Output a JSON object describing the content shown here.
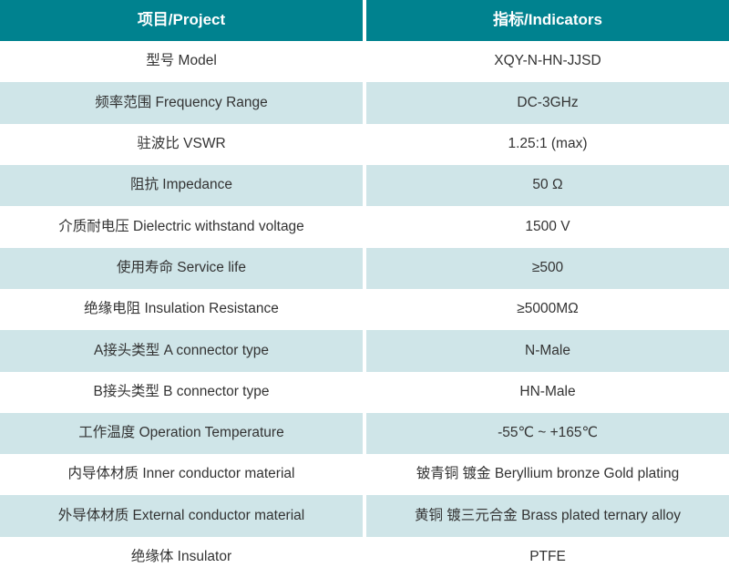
{
  "header": {
    "project": "项目/Project",
    "indicators": "指标/Indicators"
  },
  "rows": [
    {
      "project": "型号 Model",
      "indicator": "XQY-N-HN-JJSD"
    },
    {
      "project": "频率范围 Frequency Range",
      "indicator": "DC-3GHz"
    },
    {
      "project": "驻波比 VSWR",
      "indicator": "1.25:1 (max)"
    },
    {
      "project": "阻抗 Impedance",
      "indicator": "50 Ω"
    },
    {
      "project": "介质耐电压 Dielectric withstand voltage",
      "indicator": "1500 V"
    },
    {
      "project": "使用寿命 Service life",
      "indicator": "≥500"
    },
    {
      "project": "绝缘电阻 Insulation Resistance",
      "indicator": "≥5000MΩ"
    },
    {
      "project": "A接头类型 A connector type",
      "indicator": "N-Male"
    },
    {
      "project": "B接头类型 B connector type",
      "indicator": "HN-Male"
    },
    {
      "project": "工作温度 Operation Temperature",
      "indicator": "-55℃ ~ +165℃"
    },
    {
      "project": "内导体材质 Inner conductor material",
      "indicator": "铍青铜 镀金 Beryllium bronze Gold plating"
    },
    {
      "project": "外导体材质 External conductor material",
      "indicator": "黄铜 镀三元合金 Brass plated ternary alloy"
    },
    {
      "project": "绝缘体 Insulator",
      "indicator": "PTFE"
    }
  ],
  "colors": {
    "header_bg": "#00828F",
    "header_text": "#FFFFFF",
    "row_light_bg": "#CFE5E8",
    "row_white_bg": "#FFFFFF",
    "body_text": "#333333"
  }
}
